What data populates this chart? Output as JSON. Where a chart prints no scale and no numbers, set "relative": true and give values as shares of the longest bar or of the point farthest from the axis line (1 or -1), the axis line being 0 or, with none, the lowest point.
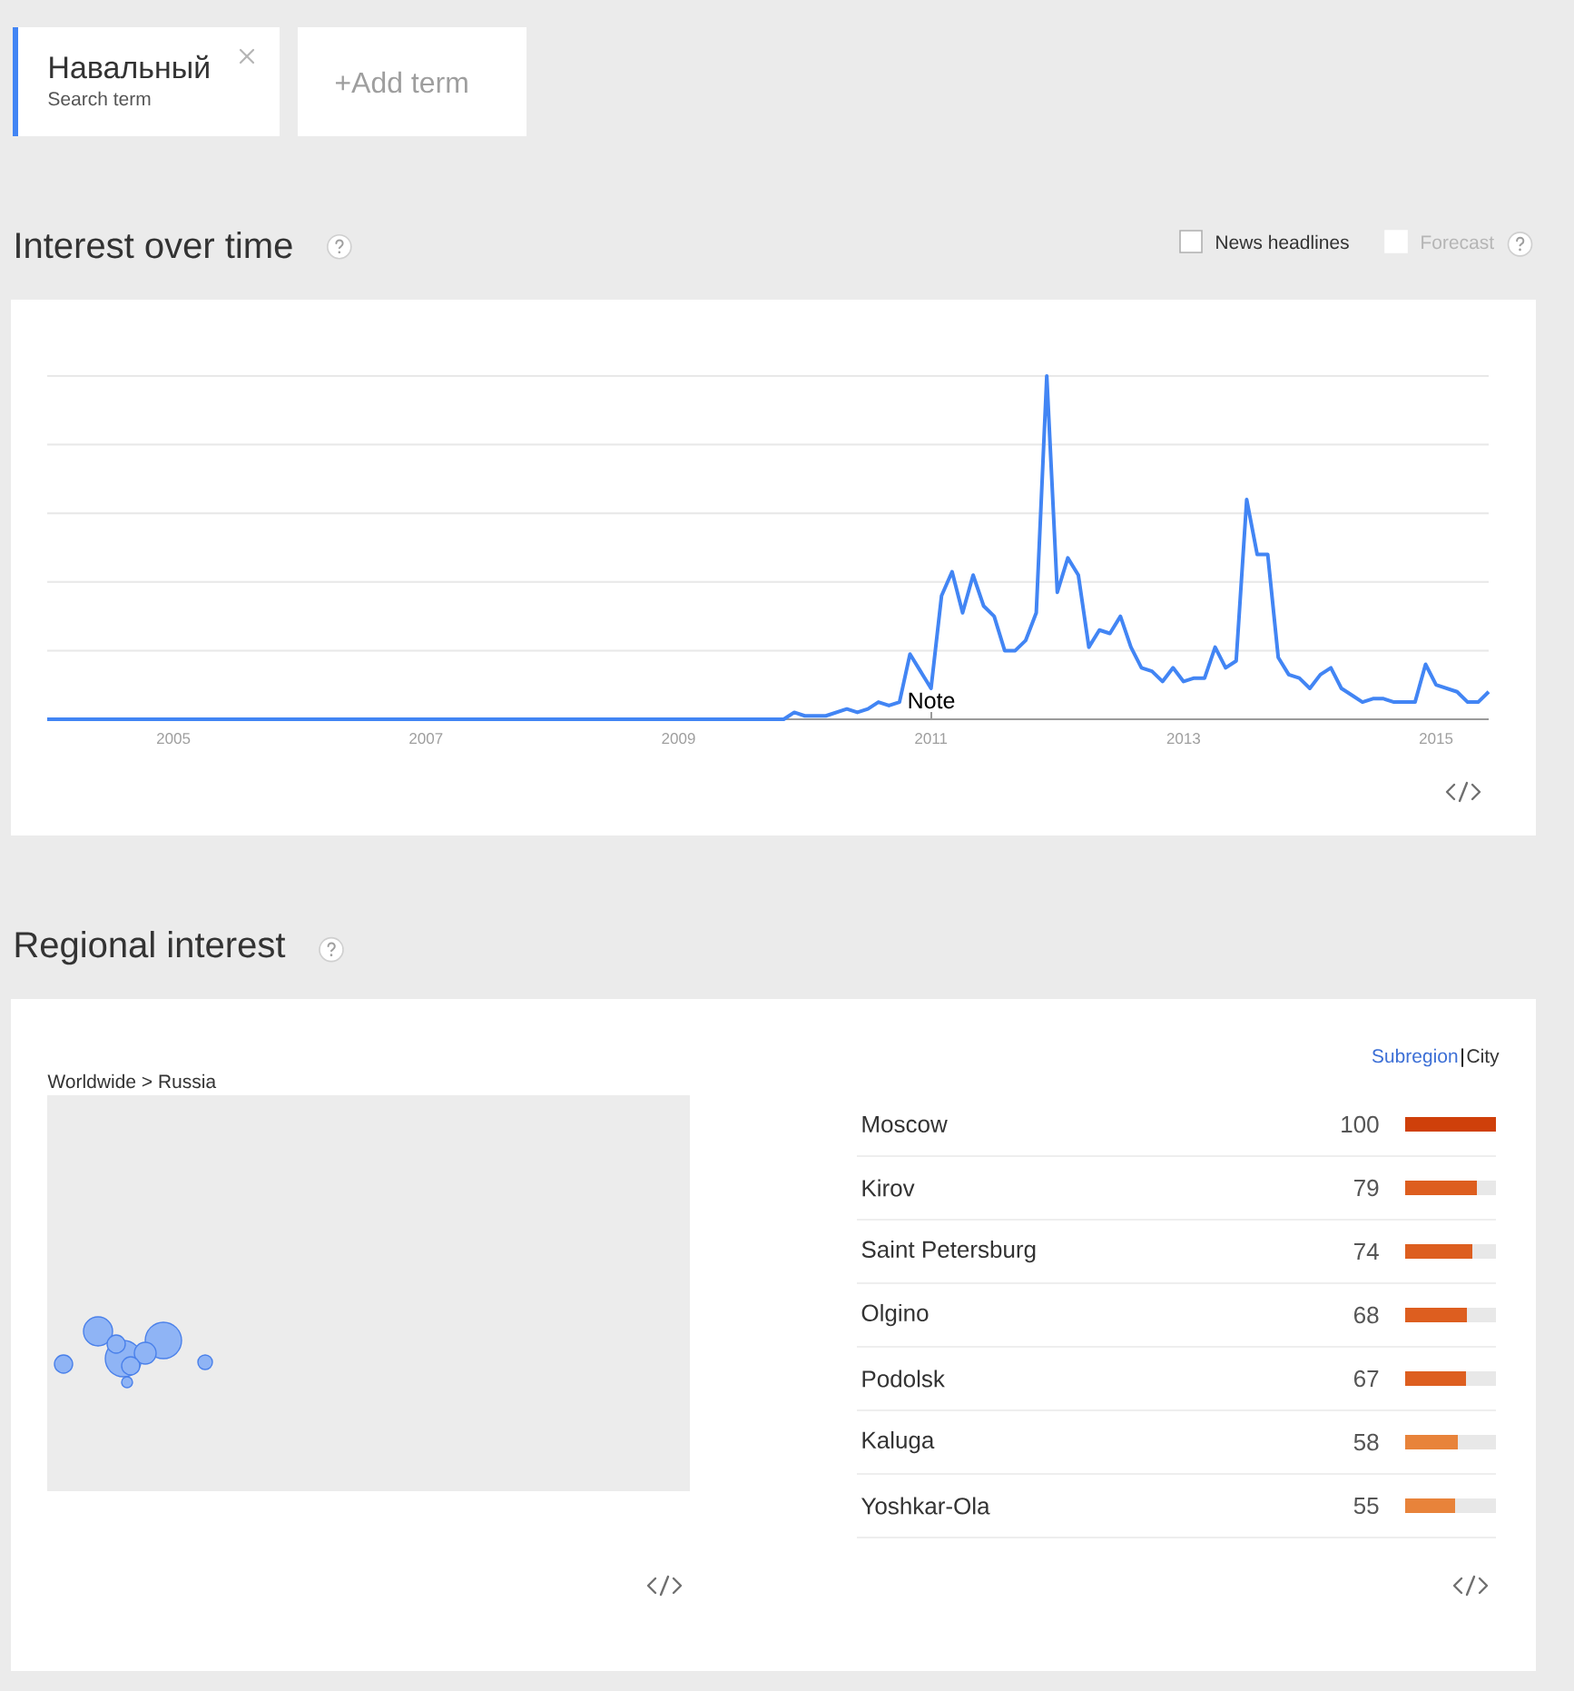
{
  "chart_data": [
    {
      "type": "other",
      "title": "Навальный",
      "subtitle": "Search term",
      "annotations": [
        "+Add term"
      ]
    },
    {
      "type": "line",
      "title": "Interest over time",
      "annotations": [
        "News headlines",
        "Forecast",
        "Note"
      ],
      "relative": true,
      "color": "#4285f4",
      "grid": "y",
      "x": [
        "2004-01",
        "2009-11",
        "2009-12",
        "2010-01",
        "2010-02",
        "2010-03",
        "2010-04",
        "2010-05",
        "2010-06",
        "2010-07",
        "2010-08",
        "2010-09",
        "2010-10",
        "2010-11",
        "2010-12",
        "2011-01",
        "2011-02",
        "2011-03",
        "2011-04",
        "2011-05",
        "2011-06",
        "2011-07",
        "2011-08",
        "2011-09",
        "2011-10",
        "2011-11",
        "2011-12",
        "2012-01",
        "2012-02",
        "2012-03",
        "2012-04",
        "2012-05",
        "2012-06",
        "2012-07",
        "2012-08",
        "2012-09",
        "2012-10",
        "2012-11",
        "2012-12",
        "2013-01",
        "2013-02",
        "2013-03",
        "2013-04",
        "2013-05",
        "2013-06",
        "2013-07",
        "2013-08",
        "2013-09",
        "2013-10",
        "2013-11",
        "2013-12",
        "2014-01",
        "2014-02",
        "2014-03",
        "2014-04",
        "2014-05",
        "2014-06",
        "2014-07",
        "2014-08",
        "2014-09",
        "2014-10",
        "2014-11",
        "2014-12",
        "2015-01",
        "2015-02",
        "2015-03",
        "2015-04",
        "2015-05",
        "2015-06"
      ],
      "values": [
        0,
        0,
        0.02,
        0.01,
        0.01,
        0.01,
        0.02,
        0.03,
        0.02,
        0.03,
        0.05,
        0.04,
        0.05,
        0.19,
        0.14,
        0.09,
        0.36,
        0.43,
        0.31,
        0.42,
        0.33,
        0.3,
        0.2,
        0.2,
        0.23,
        0.31,
        1,
        0.37,
        0.47,
        0.42,
        0.21,
        0.26,
        0.25,
        0.3,
        0.21,
        0.15,
        0.14,
        0.11,
        0.15,
        0.11,
        0.12,
        0.12,
        0.21,
        0.15,
        0.17,
        0.64,
        0.48,
        0.48,
        0.18,
        0.13,
        0.12,
        0.09,
        0.13,
        0.15,
        0.09,
        0.07,
        0.05,
        0.06,
        0.06,
        0.05,
        0.05,
        0.05,
        0.16,
        0.1,
        0.09,
        0.08,
        0.05,
        0.05,
        0.08
      ],
      "xlim": [
        "2004-01",
        "2015-06"
      ],
      "xticks": [
        "2005",
        "2007",
        "2009",
        "2011",
        "2013",
        "2015"
      ]
    },
    {
      "type": "other",
      "title": "Regional interest",
      "subtitle": "Worldwide > Russia"
    },
    {
      "type": "bar",
      "orientation": "horizontal",
      "annotations": [
        "Subregion",
        "City"
      ],
      "categories": [
        "Moscow",
        "Kirov",
        "Saint Petersburg",
        "Olgino",
        "Podolsk",
        "Kaluga",
        "Yoshkar-Ola"
      ],
      "values": [
        100,
        79,
        74,
        68,
        67,
        58,
        55
      ],
      "colors": [
        "#cf400a",
        "#dd5e1f",
        "#dd5e1f",
        "#dd5e1f",
        "#dd5e1f",
        "#e8833a",
        "#e8833a"
      ],
      "xlim": [
        0,
        100
      ],
      "data_labels": true,
      "tick_labels": "y"
    }
  ]
}
